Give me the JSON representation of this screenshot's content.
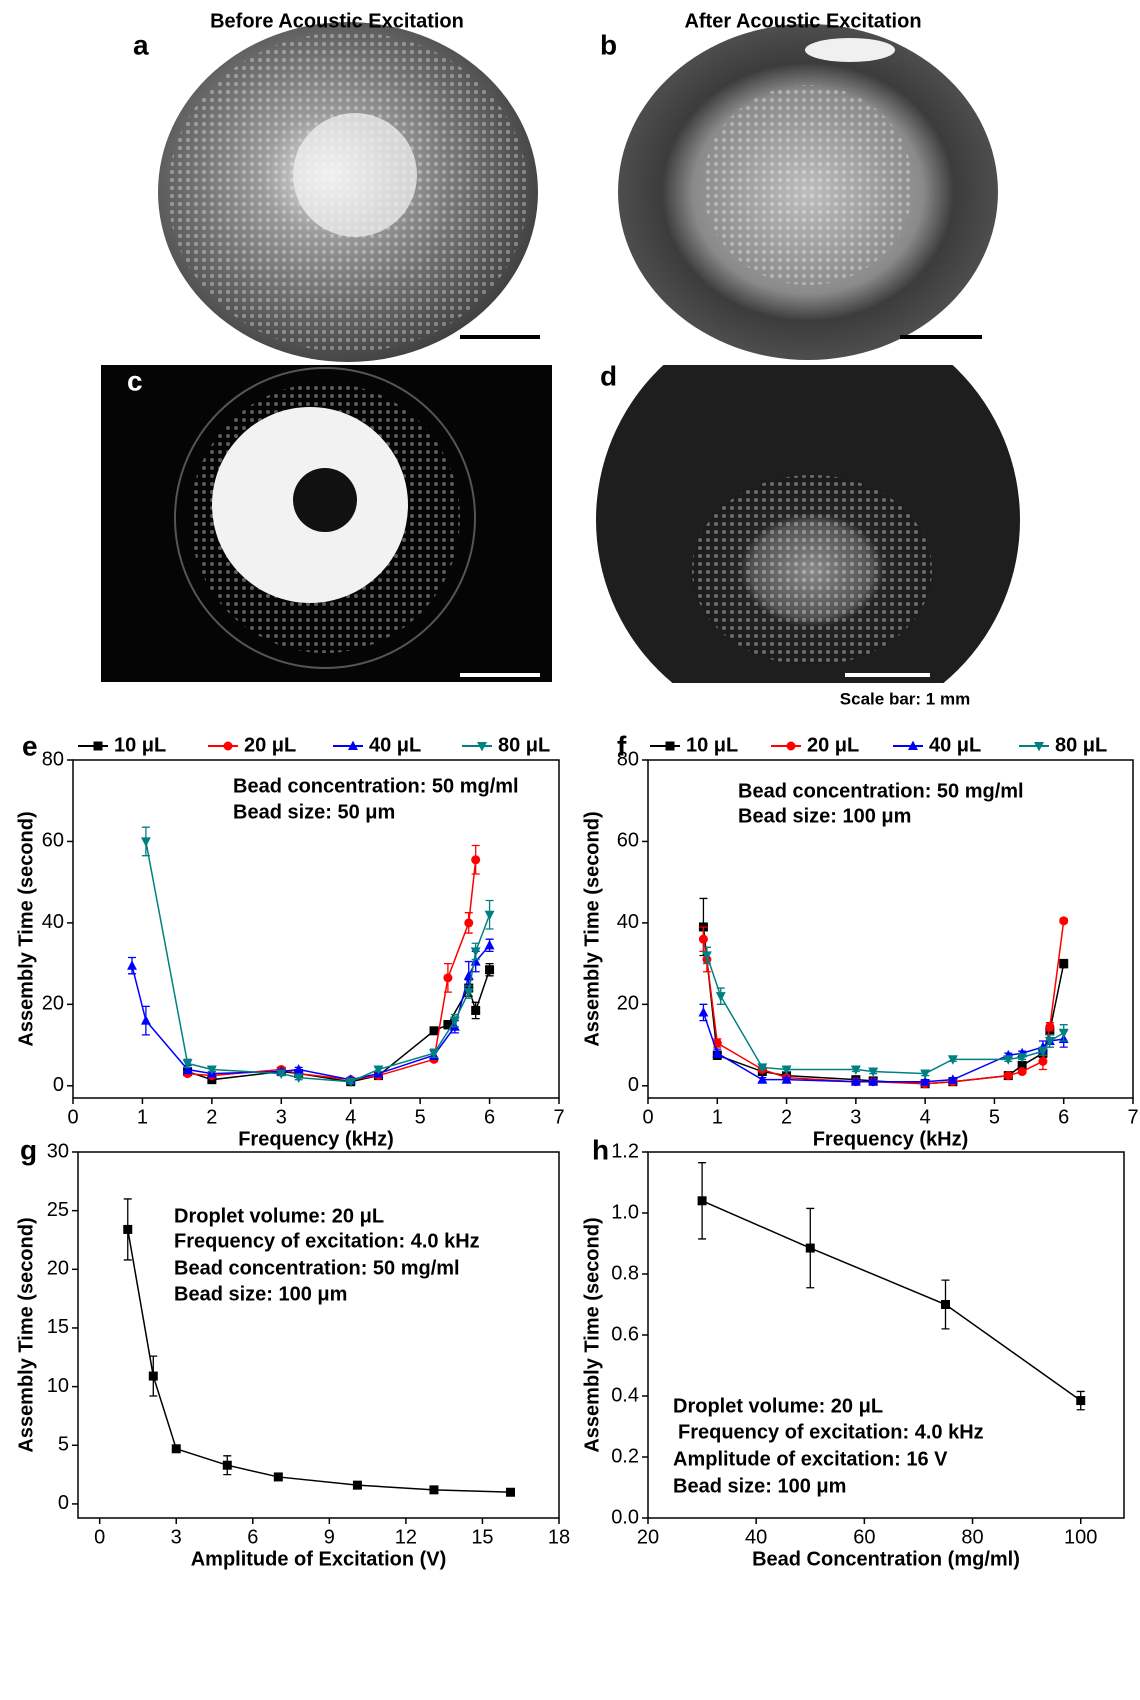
{
  "header": {
    "before": "Before Acoustic Excitation",
    "after": "After Acoustic Excitation"
  },
  "panels": [
    "a",
    "b",
    "c",
    "d"
  ],
  "scale_note": "Scale bar: 1 mm",
  "chart_data": [
    {
      "type": "line",
      "panel": "e",
      "xlabel": "Frequency (kHz)",
      "ylabel": "Assembly Time (second)",
      "annotations": [
        "Bead concentration: 50 mg/ml",
        "Bead size: 50 μm"
      ],
      "xlim": [
        0,
        7
      ],
      "xticks": [
        0,
        1,
        2,
        3,
        4,
        5,
        6,
        7
      ],
      "ylim": [
        -3,
        80
      ],
      "yticks": [
        0,
        20,
        40,
        60,
        80
      ],
      "series": [
        {
          "name": "10 μL",
          "color": "#000000",
          "marker": "square",
          "x": [
            1.65,
            2.0,
            3.0,
            3.25,
            4.0,
            4.4,
            5.2,
            5.4,
            5.7,
            5.8,
            6.0
          ],
          "values": [
            3.5,
            1.5,
            3.5,
            3.0,
            1.0,
            2.5,
            13.5,
            15,
            24,
            18.5,
            28.5
          ],
          "errors": [
            0.5,
            0.5,
            0.5,
            0.5,
            0.5,
            0.5,
            0.5,
            1,
            2,
            2,
            1.5
          ]
        },
        {
          "name": "20 μL",
          "color": "#ff0000",
          "marker": "circle",
          "x": [
            1.65,
            2.0,
            3.0,
            3.25,
            4.0,
            4.4,
            5.2,
            5.4,
            5.7,
            5.8
          ],
          "values": [
            3,
            2.5,
            4,
            3,
            1.5,
            2.5,
            6.5,
            26.5,
            40,
            55.5
          ],
          "errors": [
            0.5,
            0.5,
            0.5,
            0.5,
            0.5,
            0.5,
            0.5,
            3.5,
            2.5,
            3.5
          ]
        },
        {
          "name": "40 μL",
          "color": "#0000ff",
          "marker": "triangle",
          "x": [
            0.85,
            1.05,
            1.65,
            2.0,
            3.0,
            3.25,
            4.0,
            4.4,
            5.2,
            5.5,
            5.7,
            5.8,
            6.0
          ],
          "values": [
            29.5,
            16,
            4,
            3,
            3.5,
            4,
            1.5,
            3,
            7.5,
            14.5,
            27,
            30.5,
            34.5
          ],
          "errors": [
            2,
            3.5,
            1,
            0.5,
            0.5,
            0.5,
            0.5,
            0.5,
            1,
            1.5,
            3.5,
            2.5,
            1.5
          ]
        },
        {
          "name": "80 μL",
          "color": "#008080",
          "marker": "triangle-down",
          "x": [
            1.05,
            1.65,
            2.0,
            3.0,
            3.25,
            4.0,
            4.4,
            5.2,
            5.5,
            5.7,
            5.8,
            6.0
          ],
          "values": [
            60,
            5.5,
            4,
            3,
            2,
            1,
            4,
            8,
            16,
            23,
            33,
            42
          ],
          "errors": [
            3.5,
            1,
            0.5,
            0.5,
            0.5,
            0.5,
            0.5,
            1,
            1.5,
            1.5,
            2,
            3.5
          ]
        }
      ]
    },
    {
      "type": "line",
      "panel": "f",
      "xlabel": "Frequency (kHz)",
      "ylabel": "Assembly Time (second)",
      "annotations": [
        "Bead concentration: 50 mg/ml",
        "Bead size: 100 μm"
      ],
      "xlim": [
        0,
        7
      ],
      "xticks": [
        0,
        1,
        2,
        3,
        4,
        5,
        6,
        7
      ],
      "ylim": [
        -3,
        80
      ],
      "yticks": [
        0,
        20,
        40,
        60,
        80
      ],
      "series": [
        {
          "name": "10 μL",
          "color": "#000000",
          "marker": "square",
          "x": [
            0.8,
            1.0,
            1.65,
            2.0,
            3.0,
            3.25,
            4.0,
            4.4,
            5.2,
            5.4,
            5.7,
            5.8,
            6.0
          ],
          "values": [
            39,
            7.5,
            3.5,
            2.5,
            1.5,
            1.2,
            0.5,
            1,
            2.5,
            5,
            8,
            13.5,
            30
          ],
          "errors": [
            7,
            1,
            0.5,
            0.5,
            0.5,
            0.5,
            0.5,
            0.5,
            0.5,
            0.5,
            1,
            1,
            1
          ]
        },
        {
          "name": "20 μL",
          "color": "#ff0000",
          "marker": "circle",
          "x": [
            0.8,
            0.85,
            1.0,
            1.65,
            2.0,
            3.0,
            3.25,
            4.0,
            4.4,
            5.2,
            5.4,
            5.7,
            5.8,
            6.0
          ],
          "values": [
            36,
            31,
            10.5,
            4,
            2,
            1,
            1,
            0.5,
            1,
            2.5,
            3.5,
            6,
            14.5,
            40.5
          ],
          "errors": [
            3,
            3,
            1,
            0.5,
            0.5,
            0.5,
            0.5,
            0.5,
            0.5,
            0.5,
            0.5,
            2,
            1,
            0.5
          ]
        },
        {
          "name": "40 μL",
          "color": "#0000ff",
          "marker": "triangle",
          "x": [
            0.8,
            1.0,
            1.65,
            2.0,
            3.0,
            3.25,
            4.0,
            4.4,
            5.2,
            5.4,
            5.7,
            5.8,
            6.0
          ],
          "values": [
            18,
            8,
            1.5,
            1.5,
            1,
            1,
            1,
            1.5,
            7.5,
            8,
            9.5,
            11,
            11.5
          ],
          "errors": [
            2,
            1,
            0.5,
            0.5,
            0.5,
            0.5,
            0.5,
            0.5,
            0.5,
            0.5,
            1.5,
            1.5,
            2
          ]
        },
        {
          "name": "80 μL",
          "color": "#008080",
          "marker": "triangle-down",
          "x": [
            0.85,
            1.05,
            1.65,
            2.0,
            3.0,
            3.25,
            4.0,
            4.4,
            5.2,
            5.4,
            5.7,
            5.8,
            6.0
          ],
          "values": [
            32,
            22,
            4.5,
            4,
            4,
            3.5,
            3,
            6.5,
            6.5,
            7,
            8.5,
            11,
            13
          ],
          "errors": [
            2,
            2,
            0.5,
            0.5,
            0.5,
            0.5,
            0.5,
            0.5,
            0.5,
            0.5,
            1,
            1.5,
            2
          ]
        }
      ]
    },
    {
      "type": "line",
      "panel": "g",
      "xlabel": "Amplitude of Excitation (V)",
      "ylabel": "Assembly Time (second)",
      "annotations": [
        "Droplet volume: 20 μL",
        "Frequency of excitation: 4.0 kHz",
        "Bead concentration: 50 mg/ml",
        "Bead size: 100 μm"
      ],
      "xlim": [
        -0.85,
        18
      ],
      "xticks": [
        0,
        3,
        6,
        9,
        12,
        15,
        18
      ],
      "ylim": [
        -1.2,
        30
      ],
      "yticks": [
        0,
        5,
        10,
        15,
        20,
        25,
        30
      ],
      "series": [
        {
          "color": "#000000",
          "marker": "square",
          "x": [
            1.1,
            2.1,
            3.0,
            5.0,
            7.0,
            10.1,
            13.1,
            16.1
          ],
          "values": [
            23.4,
            10.9,
            4.7,
            3.3,
            2.3,
            1.6,
            1.2,
            1.0
          ],
          "errors": [
            2.6,
            1.7,
            0.2,
            0.8,
            0.2,
            0.15,
            0.1,
            0.1
          ]
        }
      ]
    },
    {
      "type": "line",
      "panel": "h",
      "xlabel": "Bead Concentration (mg/ml)",
      "ylabel": "Assembly Time (second)",
      "annotations": [
        "Droplet volume: 20 μL",
        "Frequency of excitation: 4.0 kHz",
        "Amplitude of excitation: 16 V",
        "Bead size: 100 μm"
      ],
      "xlim": [
        20,
        108
      ],
      "xticks": [
        20,
        40,
        60,
        80,
        100
      ],
      "ylim": [
        0,
        1.2
      ],
      "yticks": [
        {
          "value": 0,
          "label": "0.0"
        },
        0.2,
        0.4,
        0.6,
        0.8,
        {
          "value": 1,
          "label": "1.0"
        },
        1.2
      ],
      "series": [
        {
          "color": "#000000",
          "marker": "square",
          "x": [
            30,
            50,
            75,
            100
          ],
          "values": [
            1.04,
            0.885,
            0.7,
            0.385
          ],
          "errors": [
            0.125,
            0.13,
            0.08,
            0.03
          ]
        }
      ]
    }
  ]
}
